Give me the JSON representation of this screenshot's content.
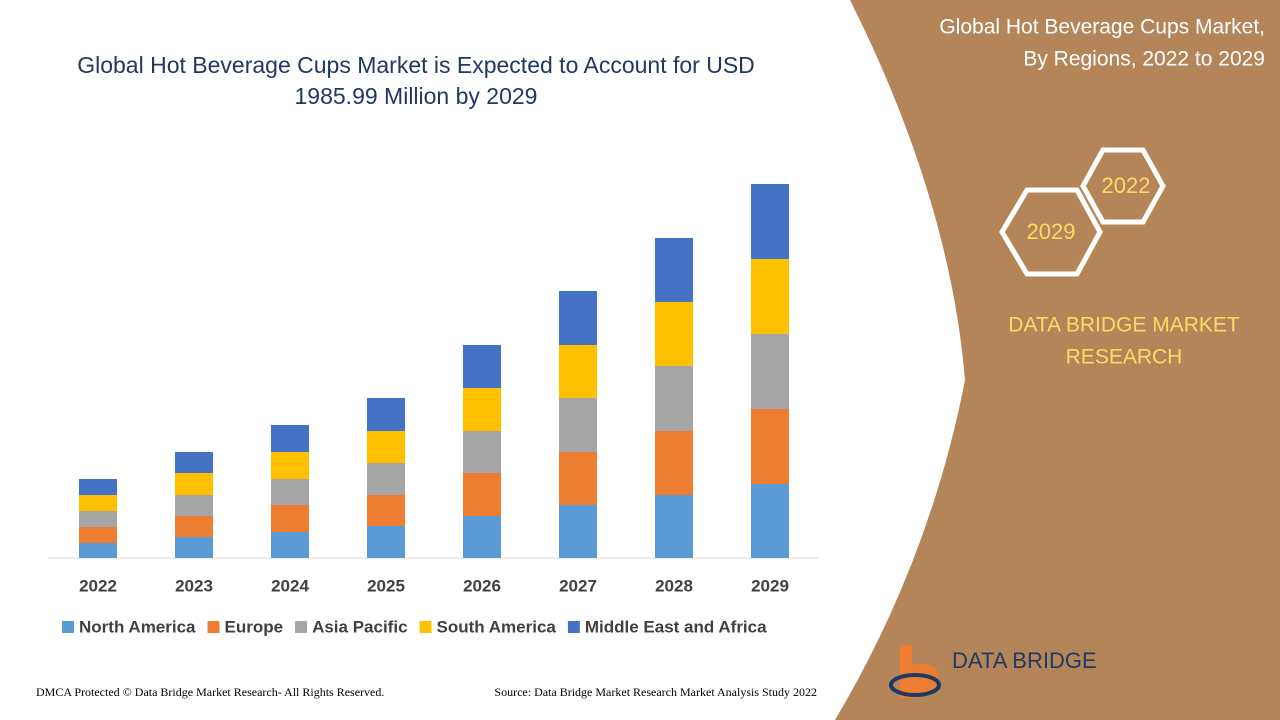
{
  "chart_data": {
    "type": "stacked-bar",
    "title": "Global Hot Beverage Cups Market is Expected to Account for USD 1985.99 Million by 2029",
    "categories": [
      "2022",
      "2023",
      "2024",
      "2025",
      "2026",
      "2027",
      "2028",
      "2029"
    ],
    "series": [
      {
        "name": "North America",
        "color": "#5b9bd5",
        "values": [
          15,
          21,
          26,
          32,
          42,
          53,
          63,
          74
        ]
      },
      {
        "name": "Europe",
        "color": "#ed7d31",
        "values": [
          16,
          21,
          27,
          31,
          43,
          53,
          64,
          75
        ]
      },
      {
        "name": "Asia Pacific",
        "color": "#a5a5a5",
        "values": [
          16,
          21,
          26,
          32,
          42,
          54,
          65,
          75
        ]
      },
      {
        "name": "South America",
        "color": "#ffc000",
        "values": [
          16,
          22,
          27,
          32,
          43,
          53,
          64,
          75
        ]
      },
      {
        "name": "Middle East and Africa",
        "color": "#4472c4",
        "values": [
          16,
          21,
          27,
          33,
          43,
          54,
          64,
          75
        ]
      }
    ]
  },
  "panel": {
    "title_lines": [
      "Global Hot Beverage Cups Market,",
      "By Regions, 2022 to 2029"
    ],
    "hex_years": [
      "2022",
      "2029"
    ],
    "brand_lines": [
      "DATA BRIDGE MARKET",
      "RESEARCH"
    ],
    "logo": "DATA BRIDGE"
  },
  "footer": {
    "left": "DMCA Protected © Data Bridge Market Research- All Rights Reserved.",
    "right": "Source: Data Bridge Market Research Market Analysis Study 2022"
  }
}
